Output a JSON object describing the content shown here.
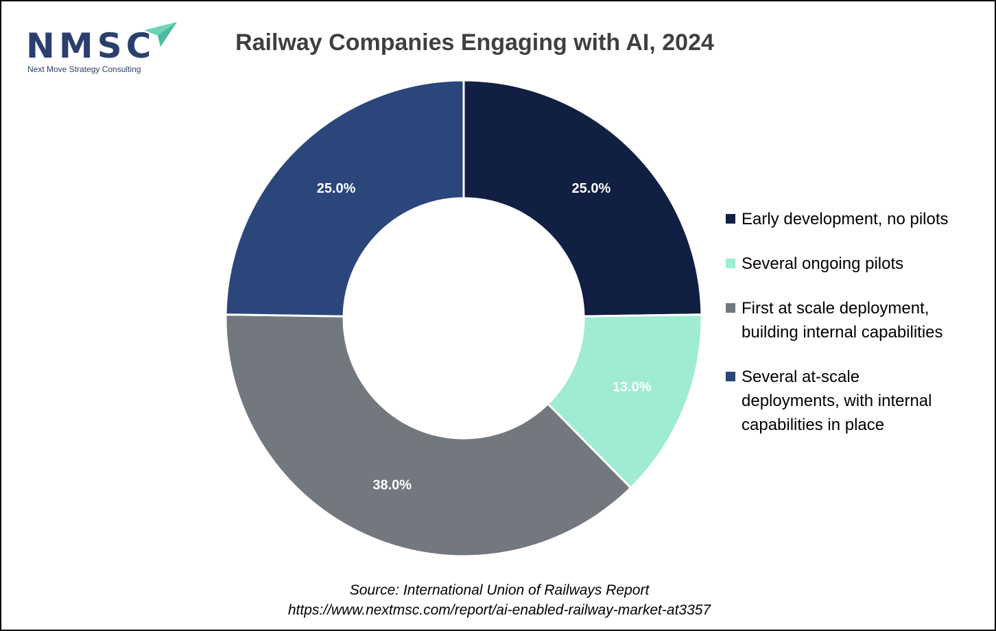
{
  "brand": {
    "name": "NMSC",
    "tagline": "Next Move Strategy Consulting",
    "name_color": "#2b3f6e",
    "accent_color": "#6fd3b8"
  },
  "chart_data": {
    "type": "pie",
    "donut": true,
    "title": "Railway Companies Engaging with AI, 2024",
    "slices": [
      {
        "label": "Early development, no pilots",
        "value": 25.0,
        "display": "25.0%",
        "color": "#101f42"
      },
      {
        "label": "Several ongoing pilots",
        "value": 13.0,
        "display": "13.0%",
        "color": "#a0ebd3"
      },
      {
        "label": "First at scale deployment, building internal capabilities",
        "value": 38.0,
        "display": "38.0%",
        "color": "#73777e"
      },
      {
        "label": "Several at-scale deployments, with internal capabilities in place",
        "value": 25.0,
        "display": "25.0%",
        "color": "#2b467b"
      }
    ],
    "legend_position": "right"
  },
  "source": {
    "line1": "Source: International Union of Railways Report",
    "line2": "https://www.nextmsc.com/report/ai-enabled-railway-market-at3357"
  }
}
